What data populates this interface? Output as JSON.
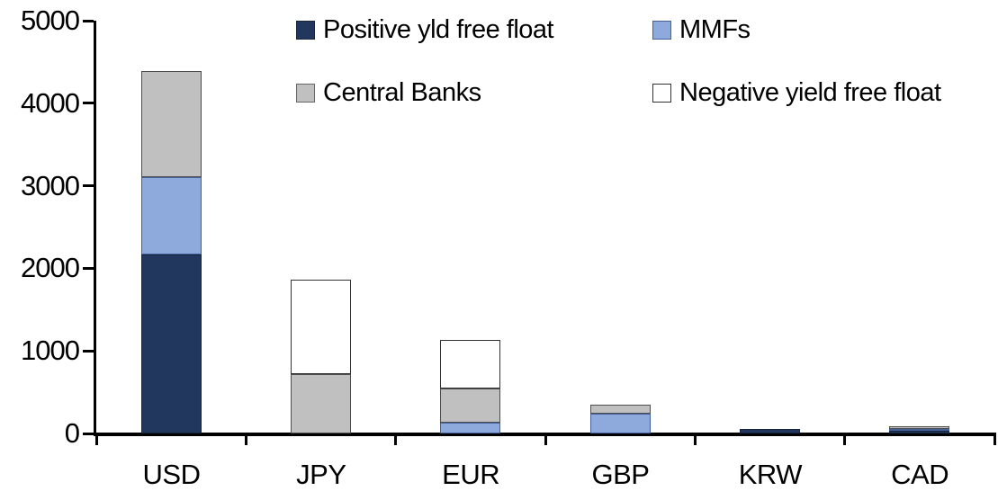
{
  "legend": {
    "items": [
      {
        "label": "Positive yld free float",
        "color": "#21375D",
        "border": "#16243E"
      },
      {
        "label": "MMFs",
        "color": "#8EA9DB",
        "border": "#44619B"
      },
      {
        "label": "Central Banks",
        "color": "#C0C0C0",
        "border": "#666666"
      },
      {
        "label": "Negative yield free float",
        "color": "#FFFFFF",
        "border": "#333333"
      }
    ]
  },
  "chart_data": {
    "type": "bar",
    "stacked": true,
    "title": "",
    "xlabel": "",
    "ylabel": "",
    "categories": [
      "USD",
      "JPY",
      "EUR",
      "GBP",
      "KRW",
      "CAD"
    ],
    "series": [
      {
        "name": "Positive yld free float",
        "color": "#21375D",
        "border": "#16243E",
        "values": [
          2170,
          0,
          0,
          0,
          55,
          35
        ]
      },
      {
        "name": "MMFs",
        "color": "#8EA9DB",
        "border": "#44619B",
        "values": [
          930,
          0,
          135,
          235,
          0,
          10
        ]
      },
      {
        "name": "Central Banks",
        "color": "#C0C0C0",
        "border": "#4D4D4D",
        "values": [
          1290,
          715,
          415,
          115,
          0,
          30
        ]
      },
      {
        "name": "Negative yield free float",
        "color": "#FFFFFF",
        "border": "#333333",
        "values": [
          0,
          1145,
          580,
          0,
          0,
          0
        ]
      }
    ],
    "stack_totals": [
      4390,
      1860,
      1130,
      350,
      55,
      75
    ],
    "ylim": [
      0,
      5000
    ],
    "yticks": [
      "0",
      "1000",
      "2000",
      "3000",
      "4000",
      "5000"
    ],
    "ytick_interval": 1000,
    "grid": false,
    "legend_position": "top-center",
    "axis_color": "#000000",
    "background_color": "#FFFFFF"
  }
}
